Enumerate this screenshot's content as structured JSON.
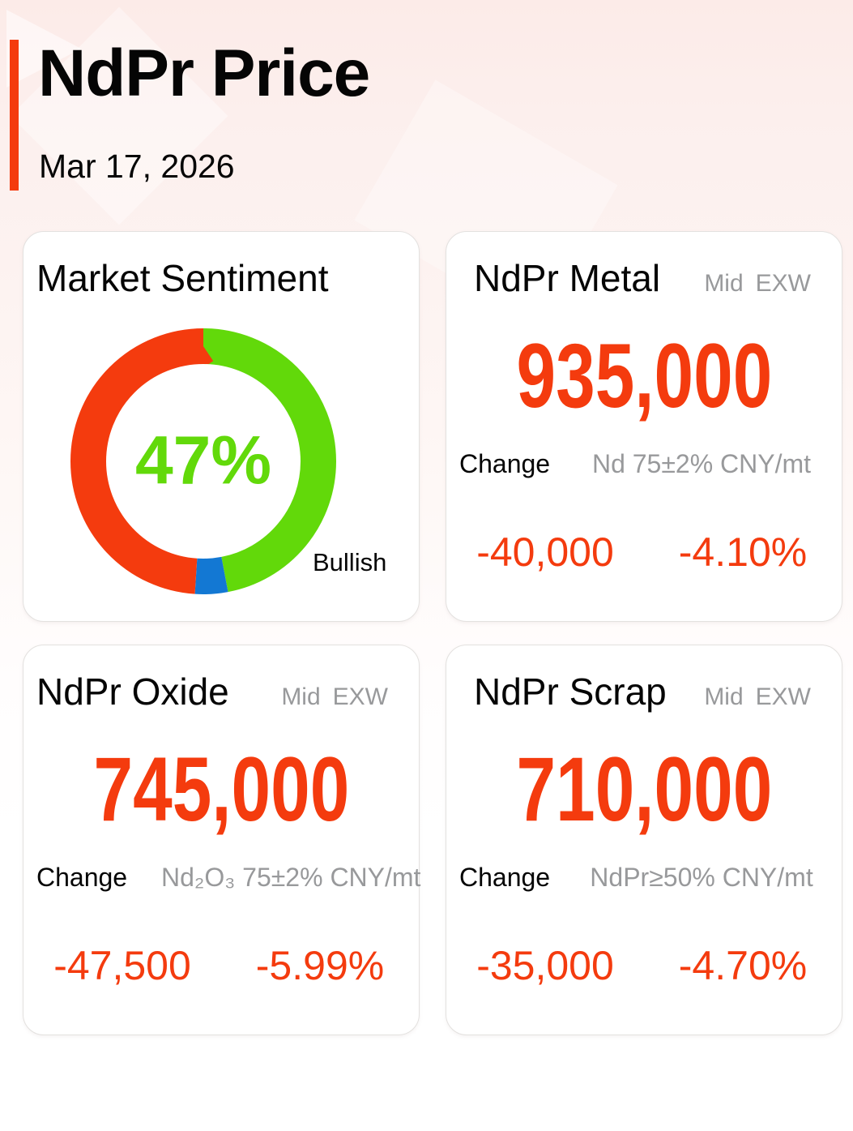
{
  "header": {
    "title": "NdPr Price",
    "date": "Mar 17, 2026"
  },
  "labels": {
    "mid": "Mid",
    "exw": "EXW",
    "change": "Change"
  },
  "chart_data": {
    "type": "pie",
    "title": "Market Sentiment",
    "donut": true,
    "center_label": "47%",
    "start_angle": "top",
    "direction": "clockwise",
    "slices": [
      {
        "label": "Bullish",
        "value": 47,
        "color": "#62d90a"
      },
      {
        "label": "",
        "value": 4,
        "color": "#1378d3"
      },
      {
        "label": "",
        "value": 49,
        "color": "#f43b0e"
      }
    ],
    "visible_labels": [
      "Bullish"
    ],
    "legend_position": "bottom-right"
  },
  "cards": [
    {
      "title": "NdPr Metal",
      "price": "935,000",
      "spec": "Nd 75±2% CNY/mt",
      "change_value": "-40,000",
      "change_percent": "-4.10%"
    },
    {
      "title": "NdPr Oxide",
      "price": "745,000",
      "spec": "Nd₂O₃ 75±2% CNY/mt",
      "change_value": "-47,500",
      "change_percent": "-5.99%"
    },
    {
      "title": "NdPr Scrap",
      "price": "710,000",
      "spec": "NdPr≥50% CNY/mt",
      "change_value": "-35,000",
      "change_percent": "-4.70%"
    }
  ],
  "colors": {
    "accent_red": "#f43b0e",
    "price_red": "#f43b0e",
    "bullish_green": "#62d90a",
    "neutral_blue": "#1378d3",
    "bearish_red": "#f43b0e",
    "muted_gray": "#98999b",
    "background_pink": "#fcebe8"
  }
}
